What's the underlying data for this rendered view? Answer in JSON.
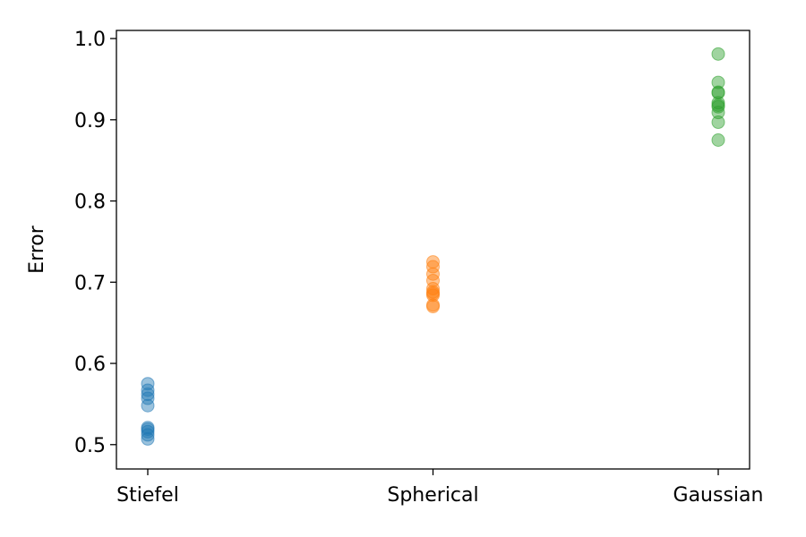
{
  "chart_data": {
    "type": "scatter",
    "title": "",
    "xlabel": "",
    "ylabel": "Error",
    "ylim": [
      0.47,
      1.01
    ],
    "yticks": [
      "0.5",
      "0.6",
      "0.7",
      "0.8",
      "0.9",
      "1.0"
    ],
    "categories": [
      "Stiefel",
      "Spherical",
      "Gaussian"
    ],
    "grid": false,
    "legend": "none",
    "series": [
      {
        "category": "Stiefel",
        "color": "#1f77b4",
        "values": [
          0.575,
          0.567,
          0.562,
          0.557,
          0.548,
          0.521,
          0.519,
          0.516,
          0.512,
          0.507
        ]
      },
      {
        "category": "Spherical",
        "color": "#ff7f0e",
        "values": [
          0.725,
          0.719,
          0.71,
          0.702,
          0.692,
          0.688,
          0.686,
          0.684,
          0.672,
          0.67
        ]
      },
      {
        "category": "Gaussian",
        "color": "#2ca02c",
        "values": [
          0.981,
          0.946,
          0.934,
          0.933,
          0.921,
          0.918,
          0.916,
          0.909,
          0.897,
          0.875
        ]
      }
    ]
  }
}
